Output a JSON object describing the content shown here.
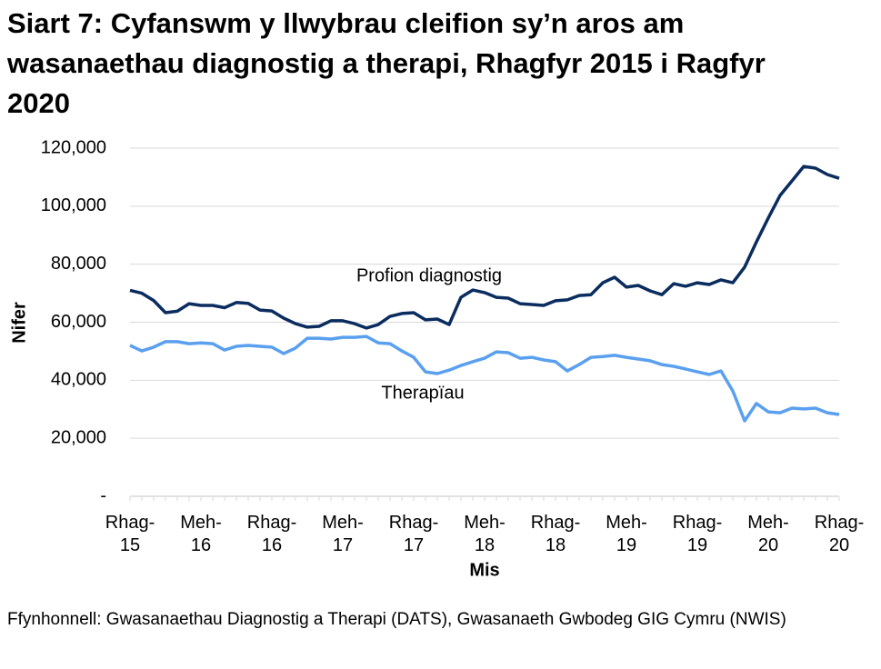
{
  "chart_data": {
    "type": "line",
    "title": "Siart 7: Cyfanswm y llwybrau cleifion sy’n aros am wasanaethau diagnostig a therapi, Rhagfyr 2015 i Ragfyr 2020",
    "source": "Ffynhonnell: Gwasanaethau Diagnostig a Therapi (DATS), Gwasanaeth Gwbodeg GIG Cymru (NWIS)",
    "x_label": "Mis",
    "y_label": "Nifer",
    "categories": [
      "Rhag-15",
      null,
      null,
      null,
      null,
      null,
      "Meh-16",
      null,
      null,
      null,
      null,
      null,
      "Rhag-16",
      null,
      null,
      null,
      null,
      null,
      "Meh-17",
      null,
      null,
      null,
      null,
      null,
      "Rhag-17",
      null,
      null,
      null,
      null,
      null,
      "Meh-18",
      null,
      null,
      null,
      null,
      null,
      "Rhag-18",
      null,
      null,
      null,
      null,
      null,
      "Meh-19",
      null,
      null,
      null,
      null,
      null,
      "Rhag-19",
      null,
      null,
      null,
      null,
      null,
      "Meh-20",
      null,
      null,
      null,
      null,
      null,
      "Rhag-20"
    ],
    "series": [
      {
        "name": "Profion diagnostig",
        "color": "#0b2c5f",
        "values": [
          71000,
          70000,
          67500,
          63300,
          63800,
          66400,
          65800,
          65800,
          65000,
          66800,
          66500,
          64200,
          63900,
          61400,
          59500,
          58300,
          58600,
          60500,
          60500,
          59500,
          58000,
          59200,
          62000,
          63000,
          63300,
          60800,
          61100,
          59200,
          68600,
          71100,
          70200,
          68600,
          68300,
          66400,
          66100,
          65800,
          67400,
          67700,
          69200,
          69500,
          73600,
          75500,
          72100,
          72700,
          70800,
          69500,
          73300,
          72400,
          73600,
          73000,
          74600,
          73600,
          79000,
          87700,
          95900,
          103700,
          108700,
          113700,
          113100,
          110900,
          109600
        ]
      },
      {
        "name": "Therapïau",
        "color": "#5aa0ef",
        "values": [
          52000,
          50100,
          51400,
          53300,
          53300,
          52600,
          52900,
          52600,
          50400,
          51700,
          52000,
          51700,
          51400,
          49200,
          51100,
          54500,
          54500,
          54200,
          54800,
          54800,
          55100,
          52900,
          52600,
          50100,
          47900,
          42900,
          42300,
          43500,
          45100,
          46400,
          47600,
          49800,
          49500,
          47600,
          47900,
          47000,
          46400,
          43200,
          45400,
          47900,
          48200,
          48600,
          47900,
          47300,
          46700,
          45400,
          44800,
          43900,
          42900,
          42000,
          43200,
          36300,
          26000,
          32000,
          29100,
          28800,
          30400,
          30100,
          30400,
          28800,
          28200
        ]
      }
    ],
    "ylim": [
      0,
      120000
    ],
    "yticks": [
      {
        "value": 0,
        "label": "-"
      },
      {
        "value": 20000,
        "label": "20,000"
      },
      {
        "value": 40000,
        "label": "40,000"
      },
      {
        "value": 60000,
        "label": "60,000"
      },
      {
        "value": 80000,
        "label": "80,000"
      },
      {
        "value": 100000,
        "label": "100,000"
      },
      {
        "value": 120000,
        "label": "120,000"
      }
    ],
    "grid": true
  }
}
